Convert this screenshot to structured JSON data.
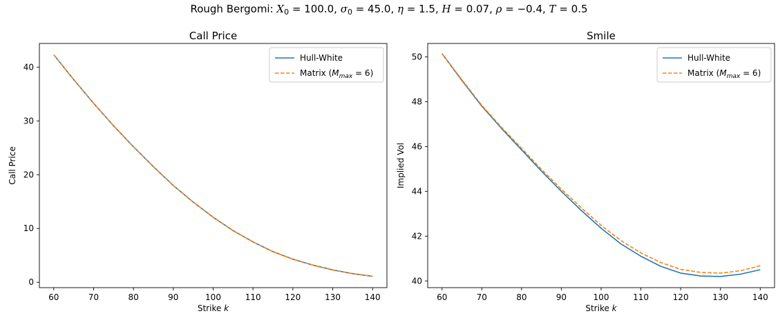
{
  "figure": {
    "title_prefix": "Rough Bergomi:",
    "params": [
      {
        "sym": "X",
        "sub": "0",
        "value": "100.0"
      },
      {
        "sym": "σ",
        "sub": "0",
        "value": "45.0"
      },
      {
        "sym": "η",
        "sub": "",
        "value": "1.5"
      },
      {
        "sym": "H",
        "sub": "",
        "value": "0.07"
      },
      {
        "sym": "ρ",
        "sub": "",
        "value": "−0.4"
      },
      {
        "sym": "T",
        "sub": "",
        "value": "0.5"
      }
    ]
  },
  "colors": {
    "hull_white": "#1f77b4",
    "matrix": "#ff7f0e"
  },
  "chart_data": [
    {
      "type": "line",
      "title": "Call Price",
      "xlabel": "Strike k",
      "ylabel": "Call Price",
      "xlim": [
        56.4,
        143.6
      ],
      "ylim": [
        -1.0,
        44.4
      ],
      "xticks": [
        60,
        70,
        80,
        90,
        100,
        110,
        120,
        130,
        140
      ],
      "yticks": [
        0,
        10,
        20,
        30,
        40
      ],
      "legend_position": "top-right",
      "x": [
        60,
        65,
        70,
        75,
        80,
        85,
        90,
        95,
        100,
        105,
        110,
        115,
        120,
        125,
        130,
        135,
        140
      ],
      "series": [
        {
          "name": "Hull-White",
          "style": "solid",
          "values": [
            42.3,
            37.7,
            33.3,
            29.1,
            25.2,
            21.5,
            18.0,
            14.9,
            12.1,
            9.6,
            7.5,
            5.7,
            4.3,
            3.2,
            2.3,
            1.6,
            1.1
          ]
        },
        {
          "name": "Matrix (M_max = 6)",
          "style": "dashed",
          "values": [
            42.3,
            37.7,
            33.3,
            29.1,
            25.2,
            21.5,
            18.0,
            14.9,
            12.1,
            9.6,
            7.5,
            5.7,
            4.3,
            3.2,
            2.3,
            1.6,
            1.1
          ]
        }
      ]
    },
    {
      "type": "line",
      "title": "Smile",
      "xlabel": "Strike k",
      "ylabel": "Implied Vol",
      "xlim": [
        56.4,
        143.6
      ],
      "ylim": [
        39.7,
        50.6
      ],
      "xticks": [
        60,
        70,
        80,
        90,
        100,
        110,
        120,
        130,
        140
      ],
      "yticks": [
        40,
        42,
        44,
        46,
        48,
        50
      ],
      "legend_position": "top-right",
      "x": [
        60,
        65,
        70,
        75,
        80,
        85,
        90,
        95,
        100,
        105,
        110,
        115,
        120,
        125,
        130,
        135,
        140
      ],
      "series": [
        {
          "name": "Hull-White",
          "style": "solid",
          "values": [
            50.15,
            48.95,
            47.8,
            46.8,
            45.85,
            44.9,
            44.0,
            43.15,
            42.35,
            41.65,
            41.1,
            40.65,
            40.35,
            40.22,
            40.2,
            40.3,
            40.5
          ]
        },
        {
          "name": "Matrix (M_max = 6)",
          "style": "dashed",
          "values": [
            50.15,
            48.98,
            47.84,
            46.85,
            45.92,
            44.98,
            44.1,
            43.27,
            42.48,
            41.8,
            41.25,
            40.82,
            40.52,
            40.38,
            40.35,
            40.45,
            40.68
          ]
        }
      ]
    }
  ]
}
